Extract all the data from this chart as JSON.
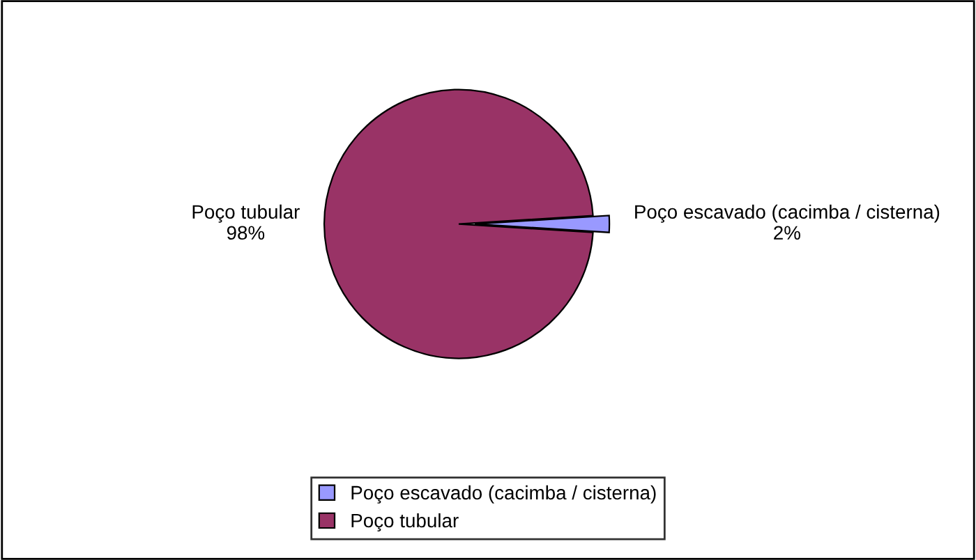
{
  "chart_data": {
    "type": "pie",
    "categories": [
      "Poço escavado (cacimba / cisterna)",
      "Poço tubular"
    ],
    "values": [
      2,
      98
    ],
    "colors": [
      "#9999ff",
      "#993366"
    ],
    "value_labels": [
      "2%",
      "98%"
    ],
    "legend": "bottom"
  }
}
